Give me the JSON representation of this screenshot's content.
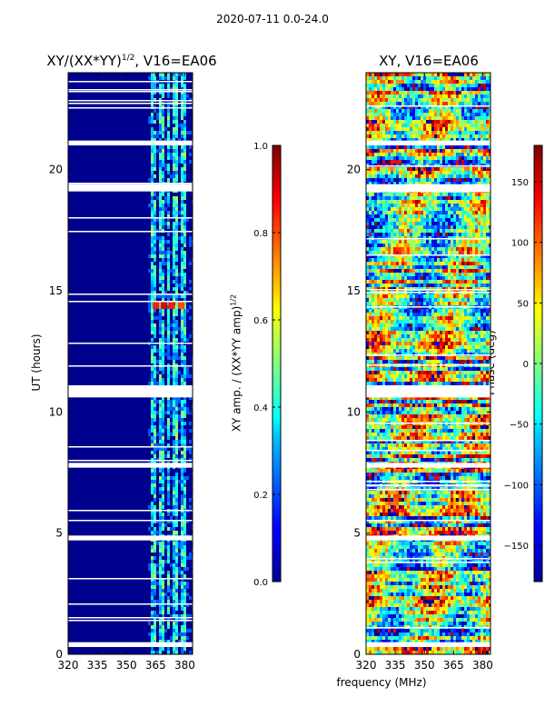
{
  "suptitle": "2020-07-11 0.0-24.0",
  "x_label": "frequency (MHz)",
  "chart_data": [
    {
      "type": "heatmap",
      "title": "XY/(XX*YY)^1/2, V16=EA06",
      "title_main": "XY/(XX*YY)",
      "title_sup": "1/2",
      "title_tail": ", V16=EA06",
      "xlabel": "frequency (MHz)",
      "ylabel": "UT (hours)",
      "xlim": [
        320,
        384
      ],
      "ylim": [
        0,
        24
      ],
      "xticks": [
        320,
        335,
        350,
        365,
        380
      ],
      "yticks": [
        0,
        5,
        10,
        15,
        20
      ],
      "xtick_labels": [
        "320",
        "335",
        "350",
        "365",
        "380"
      ],
      "ytick_labels": [
        "0",
        "5",
        "10",
        "15",
        "20"
      ],
      "colormap": "jet",
      "background_color": "#00008f",
      "colorbar": {
        "range": [
          0.0,
          1.0
        ],
        "ticks": [
          0.0,
          0.2,
          0.4,
          0.6,
          0.8,
          1.0
        ],
        "tick_labels": [
          "0.0",
          "0.2",
          "0.4",
          "0.6",
          "0.8",
          "1.0"
        ],
        "label_main": "XY amp. / (XX*YY amp)",
        "label_sup": "1/2"
      },
      "gaps_hours": [
        [
          0.3,
          0.5
        ],
        [
          4.7,
          4.9
        ],
        [
          7.7,
          7.9
        ],
        [
          10.6,
          11.1
        ],
        [
          19.1,
          19.4
        ],
        [
          21.0,
          21.2
        ]
      ],
      "bright_columns_mhz": [
        363,
        367,
        371,
        375,
        379
      ],
      "hotspots": [
        {
          "freq": 365,
          "ut": 14.4,
          "value": 0.85
        },
        {
          "freq": 369,
          "ut": 14.4,
          "value": 0.9
        },
        {
          "freq": 373,
          "ut": 14.4,
          "value": 0.85
        },
        {
          "freq": 378,
          "ut": 14.4,
          "value": 0.8
        }
      ]
    },
    {
      "type": "heatmap",
      "title": "XY, V16=EA06",
      "xlabel": "frequency (MHz)",
      "ylabel": "",
      "xlim": [
        320,
        384
      ],
      "ylim": [
        0,
        24
      ],
      "xticks": [
        320,
        335,
        350,
        365,
        380
      ],
      "yticks": [
        0,
        5,
        10,
        15,
        20
      ],
      "xtick_labels": [
        "320",
        "335",
        "350",
        "365",
        "380"
      ],
      "ytick_labels": [
        "0",
        "5",
        "10",
        "15",
        "20"
      ],
      "colormap": "jet",
      "colorbar": {
        "range": [
          -180,
          180
        ],
        "ticks": [
          -150,
          -100,
          -50,
          0,
          50,
          100,
          150
        ],
        "tick_labels": [
          "−150",
          "−100",
          "−50",
          "0",
          "50",
          "100",
          "150"
        ],
        "label": "Phase (deg)"
      },
      "gaps_hours": [
        [
          0.3,
          0.5
        ],
        [
          4.7,
          4.9
        ],
        [
          7.7,
          7.9
        ],
        [
          10.6,
          11.1
        ],
        [
          19.1,
          19.4
        ],
        [
          21.0,
          21.2
        ]
      ]
    }
  ]
}
